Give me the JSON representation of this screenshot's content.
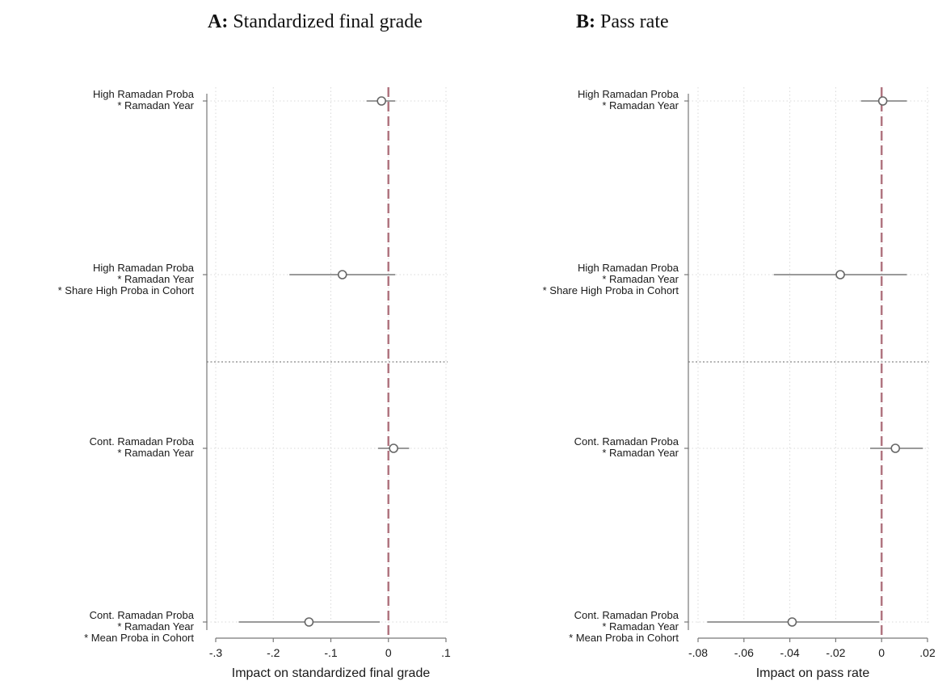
{
  "titles": [
    {
      "letter": "A:",
      "text": "Standardized final grade"
    },
    {
      "letter": "B:",
      "text": "Pass rate"
    }
  ],
  "colors": {
    "reference_line": "#b07580",
    "ci_line": "#9a9a9a",
    "marker": "#666666",
    "grid": "#d9d9d9",
    "axis": "#777777",
    "text": "#1a1a1a"
  },
  "row_labels": [
    [
      "High Ramadan Proba",
      "* Ramadan Year"
    ],
    [
      "High Ramadan Proba",
      "* Ramadan Year",
      "* Share High Proba in Cohort"
    ],
    [
      "Cont. Ramadan Proba",
      "* Ramadan Year"
    ],
    [
      "Cont. Ramadan Proba",
      "* Ramadan Year",
      "* Mean Proba in Cohort"
    ]
  ],
  "chart_data": [
    {
      "type": "scatter",
      "subtype": "coefficient plot with confidence intervals",
      "title": "Standardized final grade",
      "xlabel": "Impact on standardized final grade",
      "xlim": [
        -0.3,
        0.1
      ],
      "xticks": [
        -0.3,
        -0.2,
        -0.1,
        0,
        0.1
      ],
      "xtick_labels": [
        "-.3",
        "-.2",
        "-.1",
        "0",
        ".1"
      ],
      "reference_line": 0,
      "grid": true,
      "points": [
        {
          "estimate": -0.012,
          "ci": [
            -0.038,
            0.012
          ]
        },
        {
          "estimate": -0.08,
          "ci": [
            -0.172,
            0.012
          ]
        },
        {
          "estimate": 0.009,
          "ci": [
            -0.018,
            0.036
          ]
        },
        {
          "estimate": -0.138,
          "ci": [
            -0.26,
            -0.015
          ]
        }
      ]
    },
    {
      "type": "scatter",
      "subtype": "coefficient plot with confidence intervals",
      "title": "Pass rate",
      "xlabel": "Impact on pass rate",
      "xlim": [
        -0.08,
        0.02
      ],
      "xticks": [
        -0.08,
        -0.06,
        -0.04,
        -0.02,
        0,
        0.02
      ],
      "xtick_labels": [
        "-.08",
        "-.06",
        "-.04",
        "-.02",
        "0",
        ".02"
      ],
      "reference_line": 0,
      "grid": true,
      "points": [
        {
          "estimate": 0.0005,
          "ci": [
            -0.009,
            0.011
          ]
        },
        {
          "estimate": -0.018,
          "ci": [
            -0.047,
            0.011
          ]
        },
        {
          "estimate": 0.006,
          "ci": [
            -0.005,
            0.018
          ]
        },
        {
          "estimate": -0.039,
          "ci": [
            -0.076,
            -0.001
          ]
        }
      ]
    }
  ]
}
